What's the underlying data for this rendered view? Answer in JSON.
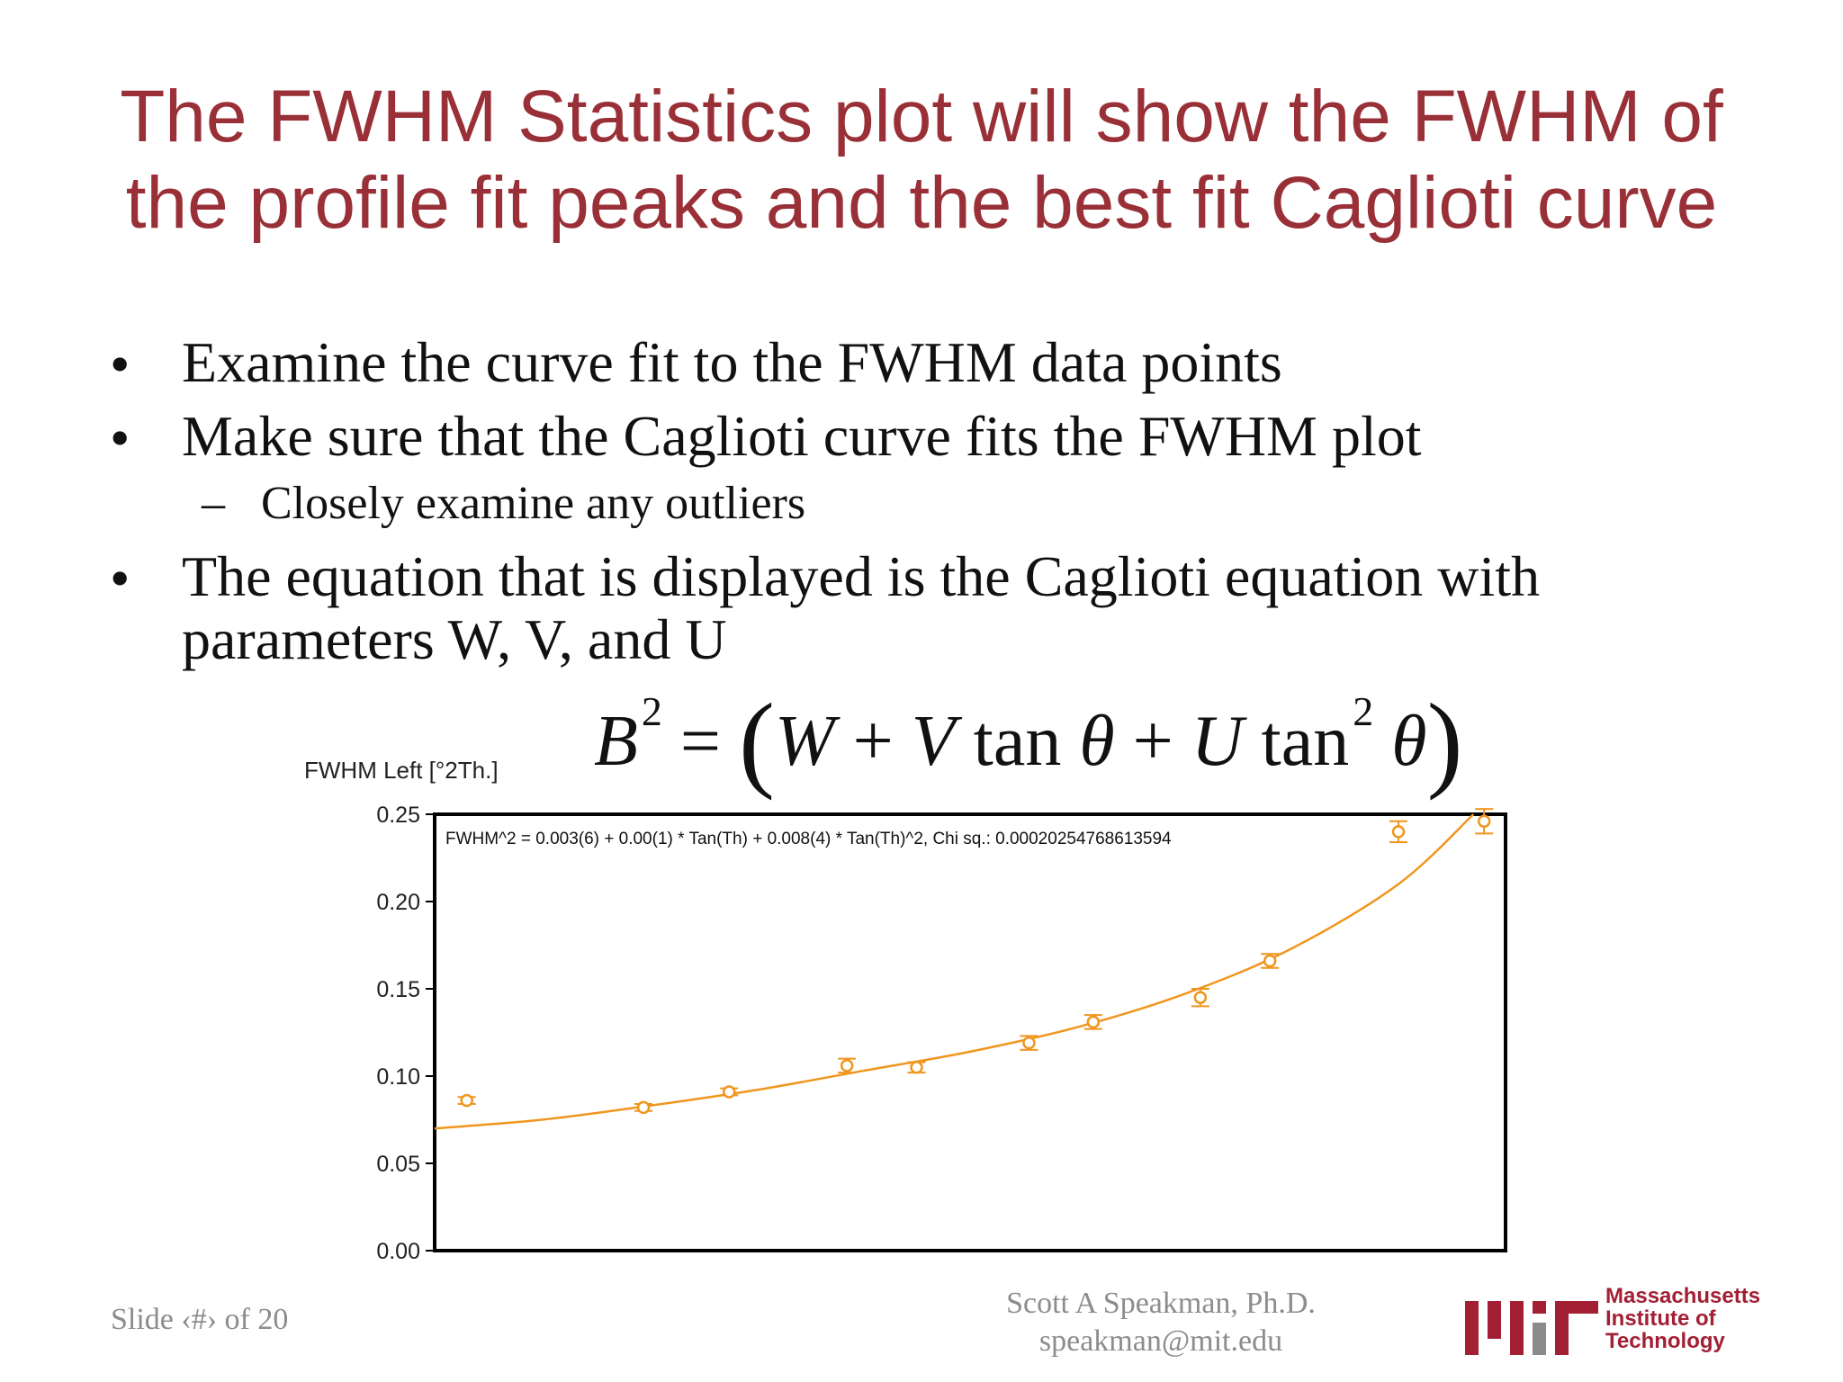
{
  "slide": {
    "title_line1": "The FWHM Statistics plot will show the FWHM of",
    "title_line2": "the profile fit peaks and the best fit Caglioti curve",
    "bullets": [
      "Examine the curve fit to the FWHM data points",
      "Make sure that the Caglioti curve fits the FWHM plot",
      "The equation that is displayed is the Caglioti equation with",
      "parameters W, V, and U"
    ],
    "sub_bullet": "Closely examine any outliers",
    "bullet_glyph": "•",
    "dash_glyph": "–",
    "equation": {
      "lhs": "B",
      "lhs_exp": "2",
      "eq": "=",
      "open": "(",
      "w": "W",
      "plus1": "+",
      "v": "V",
      "tan1": "tan",
      "theta1": "θ",
      "plus2": "+",
      "u": "U",
      "tan2": "tan",
      "tan2_exp": "2",
      "theta2": "θ",
      "close": ")"
    },
    "footer_slide": "Slide ‹#› of 20",
    "footer_author": "Scott A Speakman, Ph.D.",
    "footer_email": "speakman@mit.edu",
    "logo_text": [
      "Massachusetts",
      "Institute of",
      "Technology"
    ]
  },
  "colors": {
    "title": "#9a3037",
    "series": "#f0961e",
    "logo_red": "#a31f34",
    "logo_gray": "#8a8b8c"
  },
  "chart_data": {
    "type": "scatter",
    "ylabel": "FWHM Left [°2Th.]",
    "ylim": [
      0,
      0.25
    ],
    "yticks": [
      "0.00",
      "0.05",
      "0.10",
      "0.15",
      "0.20",
      "0.25"
    ],
    "annotation": "FWHM^2 = 0.003(6) + 0.00(1) * Tan(Th) + 0.008(4) * Tan(Th)^2, Chi sq.: 0.00020254768613594",
    "series": [
      {
        "points": [
          {
            "x": 0.03,
            "y": 0.086,
            "err": 0.002
          },
          {
            "x": 0.195,
            "y": 0.082,
            "err": 0.002
          },
          {
            "x": 0.275,
            "y": 0.091,
            "err": 0.002
          },
          {
            "x": 0.385,
            "y": 0.106,
            "err": 0.004
          },
          {
            "x": 0.45,
            "y": 0.105,
            "err": 0.003
          },
          {
            "x": 0.555,
            "y": 0.119,
            "err": 0.004
          },
          {
            "x": 0.615,
            "y": 0.131,
            "err": 0.004
          },
          {
            "x": 0.715,
            "y": 0.145,
            "err": 0.005
          },
          {
            "x": 0.78,
            "y": 0.166,
            "err": 0.004
          },
          {
            "x": 0.9,
            "y": 0.24,
            "err": 0.006
          },
          {
            "x": 0.98,
            "y": 0.246,
            "err": 0.007
          }
        ]
      }
    ],
    "fit_curve": [
      {
        "x": 0.0,
        "y": 0.07
      },
      {
        "x": 0.1,
        "y": 0.075
      },
      {
        "x": 0.2,
        "y": 0.083
      },
      {
        "x": 0.3,
        "y": 0.092
      },
      {
        "x": 0.4,
        "y": 0.103
      },
      {
        "x": 0.5,
        "y": 0.114
      },
      {
        "x": 0.6,
        "y": 0.128
      },
      {
        "x": 0.7,
        "y": 0.147
      },
      {
        "x": 0.8,
        "y": 0.173
      },
      {
        "x": 0.9,
        "y": 0.21
      },
      {
        "x": 0.97,
        "y": 0.25
      }
    ]
  }
}
